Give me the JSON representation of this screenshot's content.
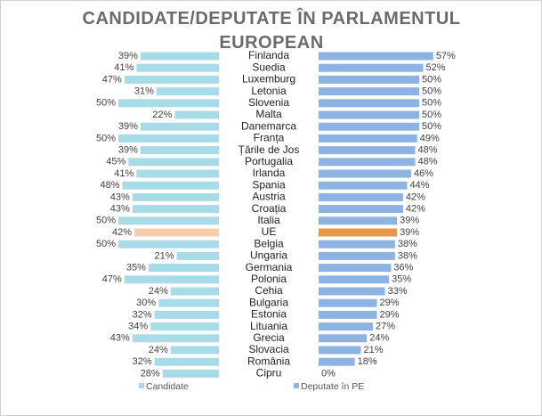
{
  "chart_data": {
    "type": "butterfly-bar",
    "title": "CANDIDATE/DEPUTATE ÎN PARLAMENTUL EUROPEAN",
    "categories": [
      "Finlanda",
      "Suedia",
      "Luxemburg",
      "Letonia",
      "Slovenia",
      "Malta",
      "Danemarca",
      "Franța",
      "Țările de Jos",
      "Portugalia",
      "Irlanda",
      "Spania",
      "Austria",
      "Croația",
      "Italia",
      "UE",
      "Belgia",
      "Ungaria",
      "Germania",
      "Polonia",
      "Cehia",
      "Bulgaria",
      "Estonia",
      "Lituania",
      "Grecia",
      "Slovacia",
      "România",
      "Cipru"
    ],
    "series": [
      {
        "name": "Candidate",
        "color": "#a8dbe8",
        "side": "left",
        "colors": [
          "#a8dbe8",
          "#a8dbe8",
          "#a8dbe8",
          "#a8dbe8",
          "#a8dbe8",
          "#a8dbe8",
          "#a8dbe8",
          "#a8dbe8",
          "#a8dbe8",
          "#a8dbe8",
          "#a8dbe8",
          "#a8dbe8",
          "#a8dbe8",
          "#a8dbe8",
          "#a8dbe8",
          "#f8cfae",
          "#a8dbe8",
          "#a8dbe8",
          "#a8dbe8",
          "#a8dbe8",
          "#a8dbe8",
          "#a8dbe8",
          "#a8dbe8",
          "#a8dbe8",
          "#a8dbe8",
          "#a8dbe8",
          "#a8dbe8",
          "#a8dbe8"
        ],
        "values": [
          39,
          41,
          47,
          31,
          50,
          22,
          39,
          50,
          39,
          45,
          41,
          48,
          43,
          43,
          50,
          42,
          50,
          21,
          35,
          47,
          24,
          30,
          32,
          34,
          43,
          24,
          32,
          28
        ],
        "value_labels": [
          "39%",
          "41%",
          "47%",
          "31%",
          "50%",
          "22%",
          "39%",
          "50%",
          "39%",
          "45%",
          "41%",
          "48%",
          "43%",
          "43%",
          "50%",
          "42%",
          "50%",
          "21%",
          "35%",
          "47%",
          "24%",
          "30%",
          "32%",
          "34%",
          "43%",
          "24%",
          "32%",
          "28%"
        ]
      },
      {
        "name": "Deputate în PE",
        "color": "#8db3e2",
        "side": "right",
        "colors": [
          "#8db3e2",
          "#8db3e2",
          "#8db3e2",
          "#8db3e2",
          "#8db3e2",
          "#8db3e2",
          "#8db3e2",
          "#8db3e2",
          "#8db3e2",
          "#8db3e2",
          "#8db3e2",
          "#8db3e2",
          "#8db3e2",
          "#8db3e2",
          "#8db3e2",
          "#e9964b",
          "#8db3e2",
          "#8db3e2",
          "#8db3e2",
          "#8db3e2",
          "#8db3e2",
          "#8db3e2",
          "#8db3e2",
          "#8db3e2",
          "#8db3e2",
          "#8db3e2",
          "#8db3e2",
          "#8db3e2"
        ],
        "values": [
          57,
          52,
          50,
          50,
          50,
          50,
          50,
          49,
          48,
          48,
          46,
          44,
          42,
          42,
          39,
          39,
          38,
          38,
          36,
          35,
          33,
          29,
          29,
          27,
          24,
          21,
          18,
          0
        ],
        "value_labels": [
          "57%",
          "52%",
          "50%",
          "50%",
          "50%",
          "50%",
          "50%",
          "49%",
          "48%",
          "48%",
          "46%",
          "44%",
          "42%",
          "42%",
          "39%",
          "39%",
          "38%",
          "38%",
          "36%",
          "35%",
          "33%",
          "29%",
          "29%",
          "27%",
          "24%",
          "21%",
          "18%",
          "0%"
        ]
      }
    ]
  }
}
